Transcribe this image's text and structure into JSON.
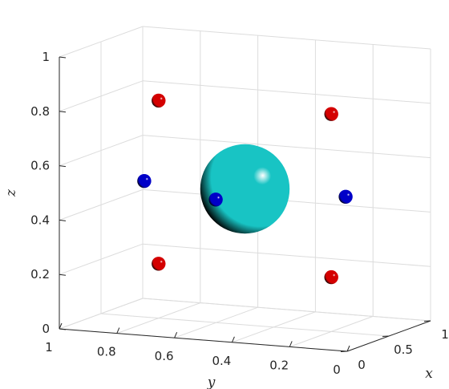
{
  "chart_data": {
    "type": "scatter3d",
    "title": "",
    "xlabel": "x",
    "ylabel": "y",
    "zlabel": "z",
    "xlim": [
      0,
      1
    ],
    "ylim": [
      0,
      1
    ],
    "zlim": [
      0,
      1
    ],
    "x_ticks": [
      "0",
      "0.5",
      "1"
    ],
    "y_ticks": [
      "1",
      "0.8",
      "0.6",
      "0.4",
      "0.2",
      "0"
    ],
    "z_ticks": [
      "0",
      "0.2",
      "0.4",
      "0.6",
      "0.8",
      "1"
    ],
    "grid": true,
    "colors": {
      "red": "#d40000",
      "blue": "#0000c8",
      "cyan": "#18c4c4"
    },
    "series": [
      {
        "color": "cyan",
        "points": [
          {
            "x": 0.5,
            "y": 0.5,
            "z": 0.5,
            "r": 0.22
          }
        ]
      },
      {
        "color": "blue",
        "points": [
          {
            "x": 0.5,
            "y": 0.85,
            "z": 0.5,
            "r": 0.09
          },
          {
            "x": 0.5,
            "y": 0.15,
            "z": 0.5,
            "r": 0.09
          },
          {
            "x": 0.85,
            "y": 0.5,
            "z": 0.5,
            "r": 0.09
          },
          {
            "x": 0.15,
            "y": 0.5,
            "z": 0.5,
            "r": 0.09
          }
        ]
      },
      {
        "color": "red",
        "points": [
          {
            "x": 0.5,
            "y": 0.8,
            "z": 0.8,
            "r": 0.09
          },
          {
            "x": 0.5,
            "y": 0.2,
            "z": 0.8,
            "r": 0.09
          },
          {
            "x": 0.5,
            "y": 0.8,
            "z": 0.2,
            "r": 0.09
          },
          {
            "x": 0.5,
            "y": 0.2,
            "z": 0.2,
            "r": 0.09
          }
        ]
      }
    ]
  }
}
